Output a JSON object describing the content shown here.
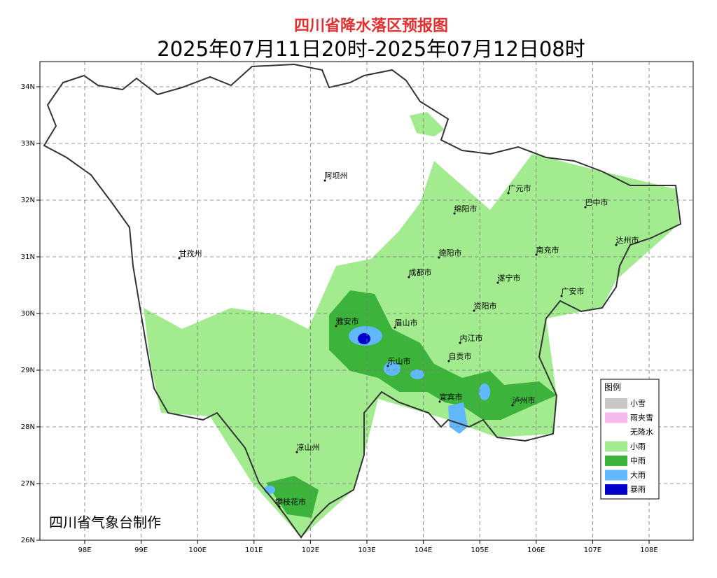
{
  "header": {
    "title": "四川省降水落区预报图",
    "subtitle": "2025年07月11日20时-2025年07月12日08时"
  },
  "map": {
    "lat_ticks": [
      "34N",
      "33N",
      "32N",
      "31N",
      "30N",
      "29N",
      "28N",
      "27N",
      "26N"
    ],
    "lon_ticks": [
      "98E",
      "99E",
      "100E",
      "101E",
      "102E",
      "103E",
      "104E",
      "105E",
      "106E",
      "107E",
      "108E"
    ],
    "regions": [
      "阿坝州",
      "广元市",
      "巴中市",
      "绵阳市",
      "达州市",
      "甘孜州",
      "德阳市",
      "南充市",
      "成都市",
      "遂宁市",
      "广安市",
      "资阳市",
      "雅安市",
      "眉山市",
      "内江市",
      "乐山市",
      "自贡市",
      "宜宾市",
      "泸州市",
      "凉山州",
      "攀枝花市"
    ]
  },
  "legend": {
    "title": "图例",
    "items": [
      {
        "label": "小雪",
        "color": "#c8c8c8"
      },
      {
        "label": "雨夹雪",
        "color": "#f5b8ec"
      },
      {
        "label": "无降水",
        "color": "#ffffff"
      },
      {
        "label": "小雨",
        "color": "#a3eb8f"
      },
      {
        "label": "中雨",
        "color": "#3cb43c"
      },
      {
        "label": "大雨",
        "color": "#62b8ff"
      },
      {
        "label": "暴雨",
        "color": "#0000cc"
      }
    ]
  },
  "footer": {
    "credit": "四川省气象台制作"
  }
}
